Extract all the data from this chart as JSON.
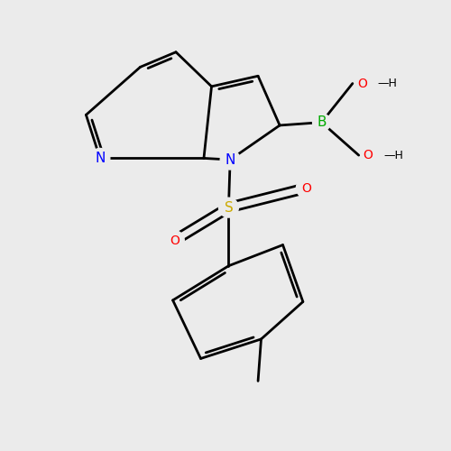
{
  "background_color": "#EBEBEB",
  "bond_color": "#000000",
  "bond_width": 2.0,
  "atom_colors": {
    "N": "#0000FF",
    "B": "#00AA00",
    "S": "#CCAA00",
    "O_red": "#FF0000"
  },
  "figsize": [
    5.0,
    5.0
  ],
  "dpi": 100,
  "xlim": [
    0,
    10
  ],
  "ylim": [
    0,
    10
  ]
}
